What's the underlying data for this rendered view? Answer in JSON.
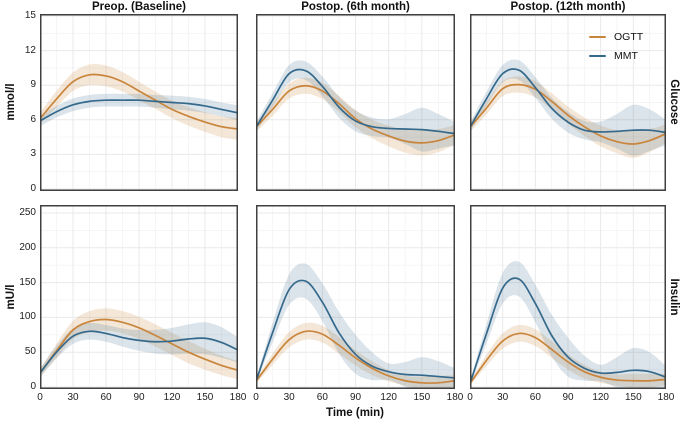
{
  "figure": {
    "col_titles": [
      "Preop. (Baseline)",
      "Postop. (6th month)",
      "Postop. (12th month)"
    ],
    "x_axis": {
      "label": "Time (min)",
      "ticks": [
        0,
        30,
        60,
        90,
        120,
        150,
        180
      ],
      "range": [
        0,
        180
      ]
    },
    "rows": [
      {
        "strip": "Glucose",
        "y_label": "mmol/l",
        "ylim": [
          0,
          15
        ],
        "yticks": [
          0,
          3,
          6,
          9,
          12,
          15
        ]
      },
      {
        "strip": "Insulin",
        "y_label": "mU/l",
        "ylim": [
          0,
          250
        ],
        "yticks": [
          0,
          50,
          100,
          150,
          200,
          250
        ]
      }
    ],
    "legend": {
      "items": [
        {
          "label": "OGTT",
          "color": "#c9853c"
        },
        {
          "label": "MMT",
          "color": "#35698c"
        }
      ]
    },
    "colors": {
      "ogtt_line": "#c9853c",
      "mmt_line": "#35698c",
      "panel_border": "#404040",
      "grid_major": "#e9e9e9",
      "grid_minor": "#f4f4f4",
      "text": "#111111",
      "tick_text": "#222222",
      "background": "#ffffff"
    }
  },
  "chart_data": [
    {
      "type": "line",
      "row": "Glucose",
      "col": "Preop. (Baseline)",
      "ylim": [
        0,
        15
      ],
      "yticks": [
        0,
        3,
        6,
        9,
        12,
        15
      ],
      "x": [
        0,
        15,
        30,
        45,
        60,
        75,
        90,
        105,
        120,
        135,
        150,
        165,
        180
      ],
      "series": [
        {
          "name": "OGTT",
          "values": [
            6.1,
            7.8,
            9.3,
            9.9,
            9.8,
            9.3,
            8.5,
            7.7,
            6.9,
            6.3,
            5.8,
            5.4,
            5.2
          ],
          "band_halfwidth": [
            0.5,
            0.7,
            0.8,
            0.9,
            0.9,
            0.85,
            0.8,
            0.75,
            0.75,
            0.8,
            0.85,
            0.9,
            0.95
          ]
        },
        {
          "name": "MMT",
          "values": [
            5.9,
            6.7,
            7.3,
            7.6,
            7.7,
            7.7,
            7.7,
            7.6,
            7.5,
            7.4,
            7.2,
            6.9,
            6.6
          ],
          "band_halfwidth": [
            0.45,
            0.5,
            0.55,
            0.55,
            0.55,
            0.55,
            0.55,
            0.55,
            0.6,
            0.6,
            0.6,
            0.6,
            0.65
          ]
        }
      ]
    },
    {
      "type": "line",
      "row": "Glucose",
      "col": "Postop. (6th month)",
      "ylim": [
        0,
        15
      ],
      "yticks": [
        0,
        3,
        6,
        9,
        12,
        15
      ],
      "x": [
        0,
        15,
        30,
        45,
        60,
        75,
        90,
        105,
        120,
        135,
        150,
        165,
        180
      ],
      "series": [
        {
          "name": "OGTT",
          "values": [
            5.35,
            6.9,
            8.5,
            8.95,
            8.5,
            7.4,
            6.1,
            5.2,
            4.6,
            4.15,
            4.0,
            4.2,
            4.7
          ],
          "band_halfwidth": [
            0.4,
            0.55,
            0.65,
            0.7,
            0.7,
            0.7,
            0.75,
            0.8,
            0.9,
            1.0,
            1.1,
            1.0,
            0.85
          ]
        },
        {
          "name": "MMT",
          "values": [
            5.35,
            7.7,
            10.0,
            10.25,
            8.9,
            7.1,
            5.9,
            5.4,
            5.25,
            5.2,
            5.15,
            5.0,
            4.8
          ],
          "band_halfwidth": [
            0.4,
            0.6,
            0.75,
            0.8,
            0.85,
            0.9,
            0.9,
            0.8,
            0.8,
            1.3,
            1.9,
            1.5,
            1.0
          ]
        }
      ]
    },
    {
      "type": "line",
      "row": "Glucose",
      "col": "Postop. (12th month)",
      "ylim": [
        0,
        15
      ],
      "yticks": [
        0,
        3,
        6,
        9,
        12,
        15
      ],
      "x": [
        0,
        15,
        30,
        45,
        60,
        75,
        90,
        105,
        120,
        135,
        150,
        165,
        180
      ],
      "series": [
        {
          "name": "OGTT",
          "values": [
            5.35,
            7.0,
            8.7,
            9.05,
            8.65,
            7.6,
            6.4,
            5.4,
            4.6,
            4.1,
            3.9,
            4.2,
            4.8
          ],
          "band_halfwidth": [
            0.4,
            0.55,
            0.65,
            0.7,
            0.7,
            0.7,
            0.75,
            0.8,
            0.9,
            1.0,
            1.2,
            1.0,
            0.8
          ]
        },
        {
          "name": "MMT",
          "values": [
            5.35,
            7.8,
            10.0,
            10.3,
            8.8,
            7.0,
            5.8,
            5.1,
            4.95,
            5.0,
            5.1,
            5.1,
            4.9
          ],
          "band_halfwidth": [
            0.4,
            0.6,
            0.75,
            0.85,
            0.9,
            0.9,
            0.9,
            0.8,
            0.9,
            1.5,
            2.2,
            1.8,
            1.1
          ]
        }
      ]
    },
    {
      "type": "line",
      "row": "Insulin",
      "col": "Preop. (Baseline)",
      "ylim": [
        0,
        250
      ],
      "yticks": [
        0,
        50,
        100,
        150,
        200,
        250
      ],
      "x": [
        0,
        15,
        30,
        45,
        60,
        75,
        90,
        105,
        120,
        135,
        150,
        165,
        180
      ],
      "series": [
        {
          "name": "OGTT",
          "values": [
            20,
            52,
            82,
            94,
            97,
            93,
            85,
            74,
            62,
            50,
            40,
            31,
            24
          ],
          "band_halfwidth": [
            6,
            10,
            13,
            15,
            16,
            16,
            16,
            16,
            16,
            16,
            15,
            14,
            13
          ]
        },
        {
          "name": "MMT",
          "values": [
            20,
            50,
            73,
            80,
            77,
            71,
            67,
            65,
            66,
            69,
            70,
            64,
            53
          ],
          "band_halfwidth": [
            6,
            9,
            11,
            12,
            12,
            13,
            15,
            17,
            19,
            21,
            23,
            22,
            18
          ]
        }
      ]
    },
    {
      "type": "line",
      "row": "Insulin",
      "col": "Postop. (6th month)",
      "ylim": [
        0,
        250
      ],
      "yticks": [
        0,
        50,
        100,
        150,
        200,
        250
      ],
      "x": [
        0,
        15,
        30,
        45,
        60,
        75,
        90,
        105,
        120,
        135,
        150,
        165,
        180
      ],
      "series": [
        {
          "name": "OGTT",
          "values": [
            8,
            40,
            68,
            80,
            76,
            60,
            42,
            27,
            16,
            9,
            6,
            6,
            9
          ],
          "band_halfwidth": [
            3,
            8,
            11,
            12,
            12,
            12,
            11,
            10,
            8,
            7,
            9,
            10,
            8
          ]
        },
        {
          "name": "MMT",
          "values": [
            8,
            78,
            140,
            152,
            122,
            78,
            47,
            30,
            22,
            18,
            17,
            15,
            13
          ],
          "band_halfwidth": [
            3,
            14,
            22,
            25,
            27,
            30,
            28,
            20,
            12,
            18,
            26,
            22,
            14
          ]
        }
      ]
    },
    {
      "type": "line",
      "row": "Insulin",
      "col": "Postop. (12th month)",
      "ylim": [
        0,
        250
      ],
      "yticks": [
        0,
        50,
        100,
        150,
        200,
        250
      ],
      "x": [
        0,
        15,
        30,
        45,
        60,
        75,
        90,
        105,
        120,
        135,
        150,
        165,
        180
      ],
      "series": [
        {
          "name": "OGTT",
          "values": [
            5,
            38,
            66,
            77,
            71,
            54,
            36,
            22,
            14,
            10,
            9,
            9,
            11
          ],
          "band_halfwidth": [
            3,
            8,
            11,
            12,
            12,
            12,
            11,
            10,
            8,
            8,
            10,
            10,
            8
          ]
        },
        {
          "name": "MMT",
          "values": [
            5,
            76,
            142,
            155,
            120,
            74,
            43,
            27,
            20,
            21,
            24,
            22,
            14
          ],
          "band_halfwidth": [
            3,
            14,
            22,
            25,
            27,
            30,
            28,
            18,
            12,
            22,
            32,
            28,
            16
          ]
        }
      ]
    }
  ]
}
